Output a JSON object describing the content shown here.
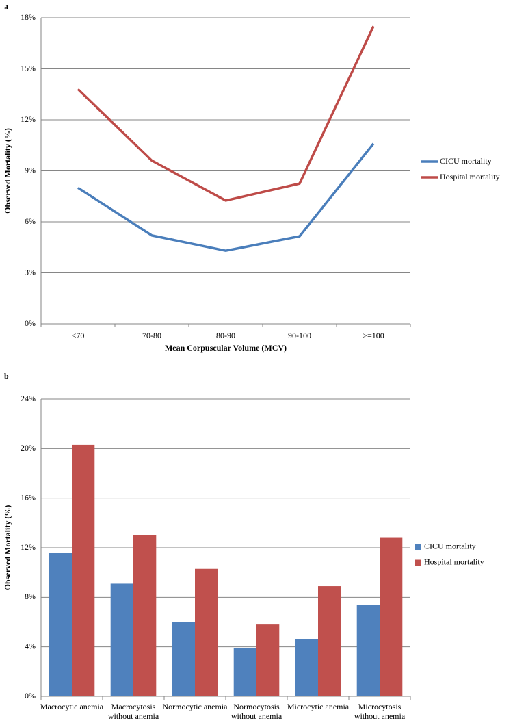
{
  "chart_data": [
    {
      "type": "line",
      "panel": "a",
      "y_label": "Observed Mortality (%)",
      "x_label": "Mean Corpuscular Volume (MCV)",
      "categories": [
        "<70",
        "70-80",
        "80-90",
        "90-100",
        ">=100"
      ],
      "series": [
        {
          "name": "CICU mortality",
          "color": "#4a7ebb",
          "values": [
            8.0,
            5.2,
            4.3,
            5.15,
            10.6
          ]
        },
        {
          "name": "Hospital mortality",
          "color": "#be4b48",
          "values": [
            13.8,
            9.6,
            7.25,
            8.25,
            17.5
          ]
        }
      ],
      "ylim": [
        0,
        18
      ],
      "yticks": [
        {
          "value": 0,
          "label": "0%"
        },
        {
          "value": 3,
          "label": "3%"
        },
        {
          "value": 6,
          "label": "6%"
        },
        {
          "value": 9,
          "label": "9%"
        },
        {
          "value": 12,
          "label": "12%"
        },
        {
          "value": 15,
          "label": "15%"
        },
        {
          "value": 18,
          "label": "18%"
        }
      ],
      "grid": true,
      "legend": "right"
    },
    {
      "type": "bar",
      "panel": "b",
      "y_label": "Observed Mortality (%)",
      "categories": [
        "Macrocytic anemia",
        "Macrocytosis without anemia",
        "Normocytic anemia",
        "Normocytosis without anemia",
        "Microcytic anemia",
        "Microcytosis without anemia"
      ],
      "series": [
        {
          "name": "CICU mortality",
          "color": "#4f81bd",
          "values": [
            11.6,
            9.1,
            6.0,
            3.9,
            4.6,
            7.4
          ]
        },
        {
          "name": "Hospital mortality",
          "color": "#c0504d",
          "values": [
            20.3,
            13.0,
            10.3,
            5.8,
            8.9,
            12.8
          ]
        }
      ],
      "ylim": [
        0,
        24
      ],
      "yticks": [
        {
          "value": 0,
          "label": "0%"
        },
        {
          "value": 4,
          "label": "4%"
        },
        {
          "value": 8,
          "label": "8%"
        },
        {
          "value": 12,
          "label": "12%"
        },
        {
          "value": 16,
          "label": "16%"
        },
        {
          "value": 20,
          "label": "20%"
        },
        {
          "value": 24,
          "label": "24%"
        }
      ],
      "grid": true,
      "legend": "right"
    }
  ]
}
